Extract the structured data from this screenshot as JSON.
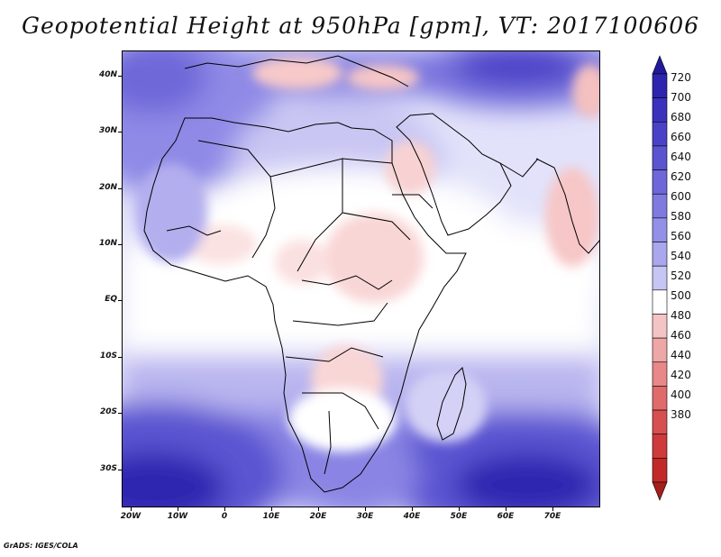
{
  "title": "Geopotential Height at 950hPa [gpm], VT: 2017100606",
  "footer": "GrADS: IGES/COLA",
  "map": {
    "lat_labels": [
      "40N",
      "30N",
      "20N",
      "10N",
      "EQ",
      "10S",
      "20S",
      "30S"
    ],
    "lon_labels": [
      "20W",
      "10W",
      "0",
      "10E",
      "20E",
      "30E",
      "40E",
      "50E",
      "60E",
      "70E"
    ],
    "region": "Africa, Middle East and western Indian Ocean"
  },
  "colorbar": {
    "levels": [
      720,
      700,
      680,
      660,
      640,
      620,
      600,
      580,
      560,
      540,
      520,
      500,
      480,
      460,
      440,
      420,
      400,
      380
    ],
    "colors": {
      "high_end": "#23199c",
      "mid": "#ffffff",
      "low_end": "#a81d1d"
    }
  }
}
